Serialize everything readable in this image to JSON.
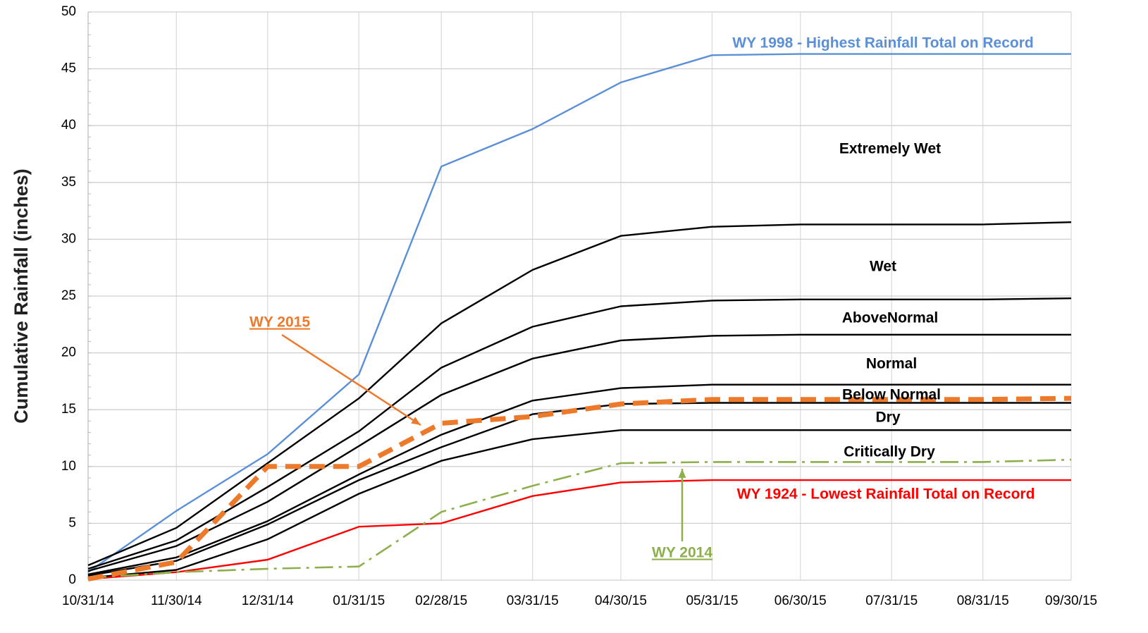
{
  "chart_data": {
    "type": "line",
    "y_label": "Cumulative Rainfall (inches)",
    "x": [
      "10/31/14",
      "11/30/14",
      "12/31/14",
      "01/31/15",
      "02/28/15",
      "03/31/15",
      "04/30/15",
      "05/31/15",
      "06/30/15",
      "07/31/15",
      "08/31/15",
      "09/30/15"
    ],
    "ylim": [
      0,
      50
    ],
    "yticks": [
      0,
      5,
      10,
      15,
      20,
      25,
      30,
      35,
      40,
      45,
      50
    ],
    "grid": true,
    "series": [
      {
        "name": "WY 1998 - Highest Rainfall Total on Record",
        "color": "#5b8fd6",
        "style": "solid",
        "values": [
          0.7,
          6.1,
          11.1,
          18.1,
          36.4,
          39.7,
          43.8,
          46.2,
          46.3,
          46.3,
          46.3,
          46.3
        ]
      },
      {
        "color": "#000000",
        "style": "solid",
        "values": [
          1.3,
          4.6,
          10.3,
          16.0,
          22.6,
          27.3,
          30.3,
          31.1,
          31.3,
          31.3,
          31.3,
          31.5
        ]
      },
      {
        "color": "#000000",
        "style": "solid",
        "values": [
          1.0,
          3.5,
          8.2,
          13.1,
          18.7,
          22.3,
          24.1,
          24.6,
          24.7,
          24.7,
          24.7,
          24.8
        ]
      },
      {
        "color": "#000000",
        "style": "solid",
        "values": [
          0.8,
          3.0,
          6.9,
          11.8,
          16.3,
          19.5,
          21.1,
          21.5,
          21.6,
          21.6,
          21.6,
          21.6
        ]
      },
      {
        "color": "#000000",
        "style": "solid",
        "values": [
          0.5,
          2.0,
          5.2,
          9.3,
          12.8,
          15.8,
          16.9,
          17.2,
          17.2,
          17.2,
          17.2,
          17.2
        ]
      },
      {
        "color": "#000000",
        "style": "solid",
        "values": [
          0.4,
          1.7,
          4.9,
          8.8,
          11.7,
          14.6,
          15.5,
          15.6,
          15.6,
          15.6,
          15.6,
          15.6
        ]
      },
      {
        "color": "#000000",
        "style": "solid",
        "values": [
          0.2,
          0.9,
          3.6,
          7.6,
          10.5,
          12.4,
          13.2,
          13.2,
          13.2,
          13.2,
          13.2,
          13.2
        ]
      },
      {
        "name": "WY 1924 - Lowest Rainfall Total on Record",
        "color": "#ff0000",
        "style": "solid",
        "values": [
          0.1,
          0.7,
          1.8,
          4.7,
          5.0,
          7.4,
          8.6,
          8.8,
          8.8,
          8.8,
          8.8,
          8.8
        ]
      },
      {
        "name": "WY 2014",
        "color": "#8db04c",
        "style": "dashdot",
        "values": [
          0.2,
          0.7,
          1.0,
          1.2,
          6.0,
          8.3,
          10.3,
          10.4,
          10.4,
          10.4,
          10.4,
          10.6
        ]
      },
      {
        "name": "WY 2015",
        "color": "#ec7a2a",
        "style": "dashed",
        "values": [
          0.1,
          1.6,
          10.0,
          10.0,
          13.8,
          14.4,
          15.5,
          15.9,
          15.9,
          15.9,
          15.9,
          16.0
        ]
      }
    ],
    "annotations": [
      "Extremely Wet",
      "Wet",
      "AboveNormal",
      "Normal",
      "Below Normal",
      "Dry",
      "Critically Dry"
    ]
  }
}
